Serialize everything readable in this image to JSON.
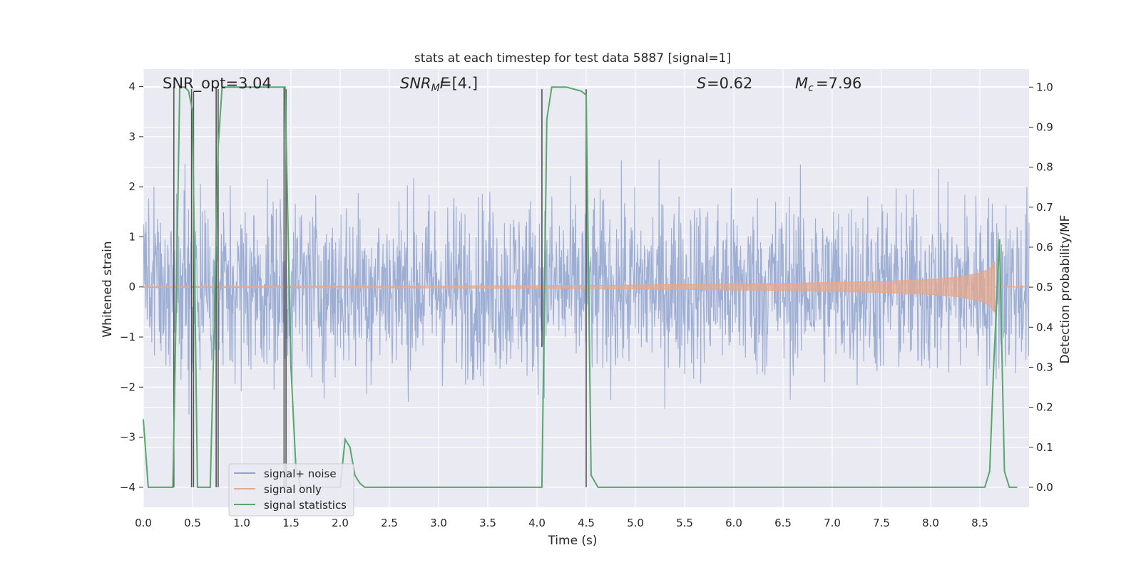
{
  "chart_data": {
    "type": "line",
    "title": "stats at each timestep for test data 5887 [signal=1]",
    "xlabel": "Time (s)",
    "ylabel": "Whitened strain",
    "y2label": "Detection probability/MF",
    "xlim": [
      0,
      9
    ],
    "ylim": [
      -4.4,
      4.35
    ],
    "y2lim": [
      -0.05,
      1.045
    ],
    "xticks": [
      "0.0",
      "0.5",
      "1.0",
      "1.5",
      "2.0",
      "2.5",
      "3.0",
      "3.5",
      "4.0",
      "4.5",
      "5.0",
      "5.5",
      "6.0",
      "6.5",
      "7.0",
      "7.5",
      "8.0",
      "8.5"
    ],
    "yticks": [
      "4",
      "3",
      "2",
      "1",
      "0",
      "−1",
      "−2",
      "−3",
      "−4"
    ],
    "y2ticks": [
      "1.0",
      "0.9",
      "0.8",
      "0.7",
      "0.6",
      "0.5",
      "0.4",
      "0.3",
      "0.2",
      "0.1",
      "0.0"
    ],
    "annotations": {
      "snr_opt": "SNR_opt=3.04",
      "snr_mf": "=[4.]",
      "s_value": "=0.62",
      "mc_value": "=7.96"
    },
    "legend": {
      "placement": "lower-left",
      "entries": [
        "signal+ noise",
        "signal only",
        "signal statistics"
      ]
    },
    "series": [
      {
        "name": "signal statistics",
        "axis": "right",
        "x": [
          0.0,
          0.05,
          0.1,
          0.2,
          0.3,
          0.33,
          0.37,
          0.42,
          0.46,
          0.5,
          0.55,
          0.6,
          0.68,
          0.72,
          0.76,
          0.8,
          0.82,
          1.0,
          1.3,
          1.44,
          1.5,
          1.55,
          1.6,
          2.0,
          2.05,
          2.1,
          2.15,
          2.2,
          2.25,
          3.0,
          4.05,
          4.1,
          4.15,
          4.3,
          4.45,
          4.5,
          4.55,
          4.62,
          5.0,
          6.0,
          7.0,
          8.0,
          8.55,
          8.6,
          8.64,
          8.7,
          8.75,
          8.8,
          8.88
        ],
        "values": [
          0.17,
          0.0,
          0.0,
          0.0,
          0.0,
          0.4,
          1.0,
          1.0,
          0.99,
          0.94,
          0.0,
          0.0,
          0.0,
          0.4,
          0.85,
          1.0,
          1.0,
          1.0,
          1.0,
          1.0,
          0.3,
          0.05,
          0.0,
          0.0,
          0.12,
          0.1,
          0.03,
          0.01,
          0.0,
          0.0,
          0.0,
          0.92,
          1.0,
          1.0,
          0.99,
          0.98,
          0.03,
          0.0,
          0.0,
          0.0,
          0.0,
          0.0,
          0.0,
          0.04,
          0.3,
          0.62,
          0.04,
          0.0,
          0.0
        ]
      },
      {
        "name": "signal only",
        "axis": "left",
        "envelope_x": [
          0.0,
          3.0,
          4.5,
          5.5,
          6.5,
          7.5,
          8.0,
          8.3,
          8.5,
          8.6,
          8.63,
          8.65
        ],
        "envelope_values": [
          0.01,
          0.02,
          0.03,
          0.05,
          0.07,
          0.11,
          0.15,
          0.2,
          0.28,
          0.36,
          0.45,
          0.5
        ]
      },
      {
        "name": "signal+ noise",
        "axis": "left",
        "envelope_x": [
          0.0,
          9.0
        ],
        "envelope_values": [
          2.3,
          2.3
        ]
      }
    ],
    "detection_markers": {
      "x": [
        0.31,
        0.49,
        0.51,
        0.74,
        0.76,
        1.43,
        1.45,
        4.05,
        4.5
      ],
      "top": [
        4.0,
        3.95,
        3.9,
        4.0,
        3.95,
        4.0,
        3.95,
        3.95,
        3.95
      ],
      "bottom": [
        -4.0,
        -4.0,
        -4.0,
        -4.0,
        -4.0,
        -4.0,
        -4.0,
        -1.2,
        -4.0
      ]
    },
    "grid": true
  }
}
